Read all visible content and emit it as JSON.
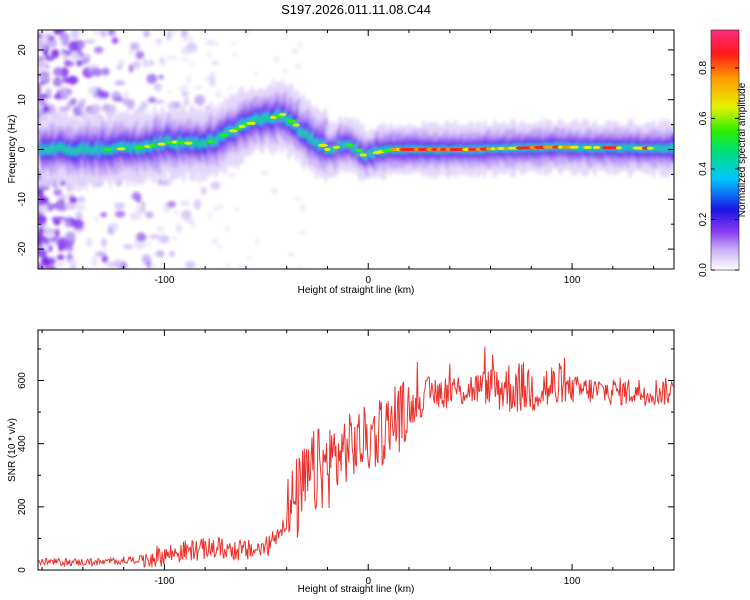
{
  "title": "S197.2026.011.11.08.C44",
  "chart_data": [
    {
      "type": "heatmap",
      "name": "spectrogram",
      "xlabel": "Height of straight line (km)",
      "ylabel": "Frequency (Hz)",
      "xlim": [
        -162,
        150
      ],
      "ylim": [
        -24,
        24
      ],
      "xticks": [
        -100,
        0,
        100
      ],
      "yticks": [
        -20,
        -10,
        0,
        10,
        20
      ],
      "colorbar": {
        "label": "Normalized spectral amplitude",
        "range": [
          0,
          0.95
        ],
        "ticks": [
          "0.0",
          "0.2",
          "0.4",
          "0.6",
          "0.8"
        ],
        "colormap": [
          "#ffffff",
          "#cdb6f4",
          "#8a3cf0",
          "#1a14e6",
          "#00c8ff",
          "#00e070",
          "#2cf000",
          "#e8f000",
          "#ff9a00",
          "#ff1a1a",
          "#ff2a80"
        ]
      },
      "ridge": {
        "x": [
          -160,
          -140,
          -125,
          -110,
          -95,
          -80,
          -70,
          -60,
          -50,
          -42,
          -37,
          -30,
          -24,
          -20,
          -15,
          -10,
          -6,
          -3,
          0,
          5,
          12,
          20,
          50,
          90,
          150
        ],
        "y": [
          0,
          0,
          0,
          0.5,
          1.5,
          1,
          3,
          5,
          6,
          7,
          5.5,
          3,
          1.5,
          0,
          0.5,
          1,
          0.5,
          -1,
          -1.5,
          -0.5,
          0,
          0,
          0,
          0.5,
          0.2
        ]
      }
    },
    {
      "type": "line",
      "name": "snr",
      "color": "#e8332e",
      "xlabel": "Height of straight line (km)",
      "ylabel": "SNR (10 * v/v)",
      "xlim": [
        -162,
        150
      ],
      "ylim": [
        0,
        760
      ],
      "xticks": [
        -100,
        0,
        100
      ],
      "yticks": [
        0,
        200,
        400,
        600
      ],
      "trend": {
        "x": [
          -162,
          -130,
          -110,
          -90,
          -75,
          -60,
          -50,
          -42,
          -35,
          -28,
          -20,
          -12,
          -5,
          5,
          15,
          30,
          60,
          90,
          120,
          150
        ],
        "y": [
          25,
          25,
          35,
          60,
          70,
          60,
          70,
          140,
          220,
          300,
          330,
          380,
          400,
          430,
          480,
          560,
          580,
          575,
          565,
          565
        ]
      }
    }
  ]
}
